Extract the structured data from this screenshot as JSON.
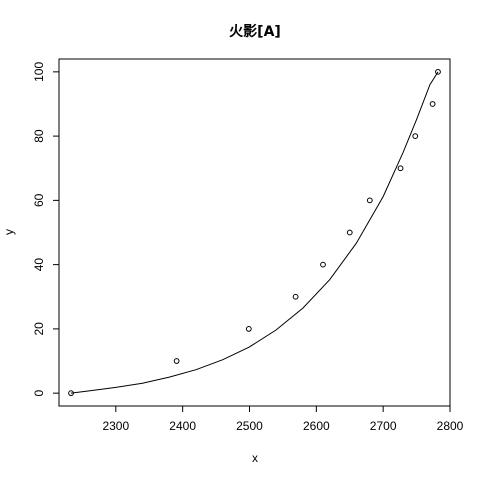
{
  "chart_data": {
    "type": "scatter",
    "title": "火影[A]",
    "xlabel": "x",
    "ylabel": "y",
    "xlim": [
      2215,
      2800
    ],
    "ylim": [
      -4,
      104
    ],
    "x_ticks": [
      2300,
      2400,
      2500,
      2600,
      2700,
      2800
    ],
    "y_ticks": [
      0,
      20,
      40,
      60,
      80,
      100
    ],
    "grid": false,
    "points": {
      "x": [
        2233,
        2391,
        2499,
        2569,
        2610,
        2650,
        2680,
        2726,
        2748,
        2774,
        2782
      ],
      "y": [
        0,
        10,
        20,
        30,
        40,
        50,
        60,
        70,
        80,
        90,
        100
      ]
    },
    "fit_curve": {
      "x": [
        2233,
        2260,
        2300,
        2340,
        2380,
        2420,
        2460,
        2500,
        2540,
        2580,
        2620,
        2660,
        2700,
        2730,
        2750,
        2770,
        2782
      ],
      "y": [
        0,
        0.7,
        1.8,
        3.1,
        5.0,
        7.3,
        10.4,
        14.4,
        19.7,
        26.5,
        35.3,
        46.7,
        61.2,
        75.0,
        85.2,
        96.0,
        100
      ]
    }
  }
}
